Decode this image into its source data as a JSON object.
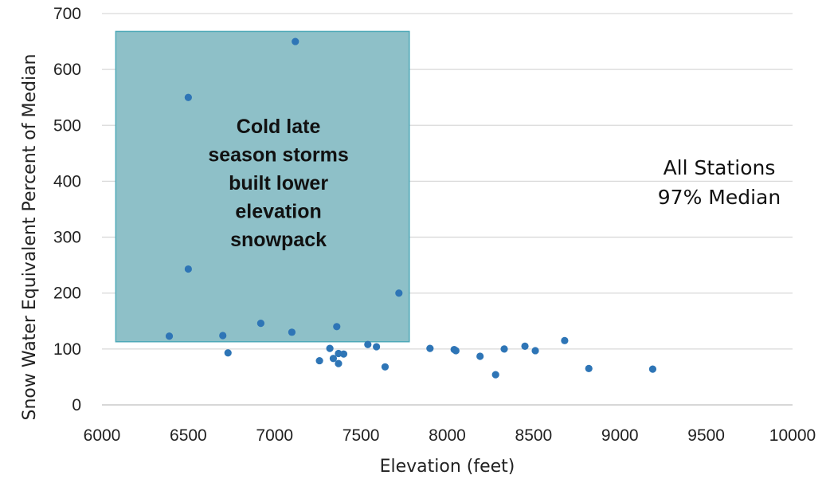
{
  "chart_data": {
    "type": "scatter",
    "title": "",
    "xlabel": "Elevation (feet)",
    "ylabel": "Snow Water Equivalent Percent of Median",
    "xlim": [
      6000,
      10000
    ],
    "ylim": [
      0,
      700
    ],
    "xticks": [
      6000,
      6500,
      7000,
      7500,
      8000,
      8500,
      9000,
      9500,
      10000
    ],
    "yticks": [
      0,
      100,
      200,
      300,
      400,
      500,
      600,
      700
    ],
    "grid": "horizontal",
    "point_color": "#2e75b6",
    "x": [
      6390,
      6500,
      6500,
      6700,
      6730,
      6920,
      7100,
      7120,
      7260,
      7320,
      7340,
      7360,
      7370,
      7370,
      7400,
      7540,
      7590,
      7640,
      7720,
      7900,
      8040,
      8050,
      8190,
      8280,
      8330,
      8450,
      8510,
      8680,
      8820,
      9190
    ],
    "y": [
      123,
      243,
      550,
      124,
      93,
      146,
      130,
      650,
      79,
      101,
      83,
      140,
      92,
      74,
      91,
      108,
      104,
      68,
      200,
      101,
      99,
      97,
      87,
      54,
      100,
      105,
      97,
      115,
      65,
      64
    ],
    "highlight_region": {
      "x_range": [
        6080,
        7780
      ],
      "y_range": [
        113,
        668
      ],
      "fill": "#8ec0c8",
      "stroke": "#4fa9b8",
      "label_lines": [
        "Cold late",
        "season storms",
        "built lower",
        "elevation",
        "snowpack"
      ]
    },
    "annotation_lines": [
      "All Stations",
      "97% Median"
    ]
  }
}
